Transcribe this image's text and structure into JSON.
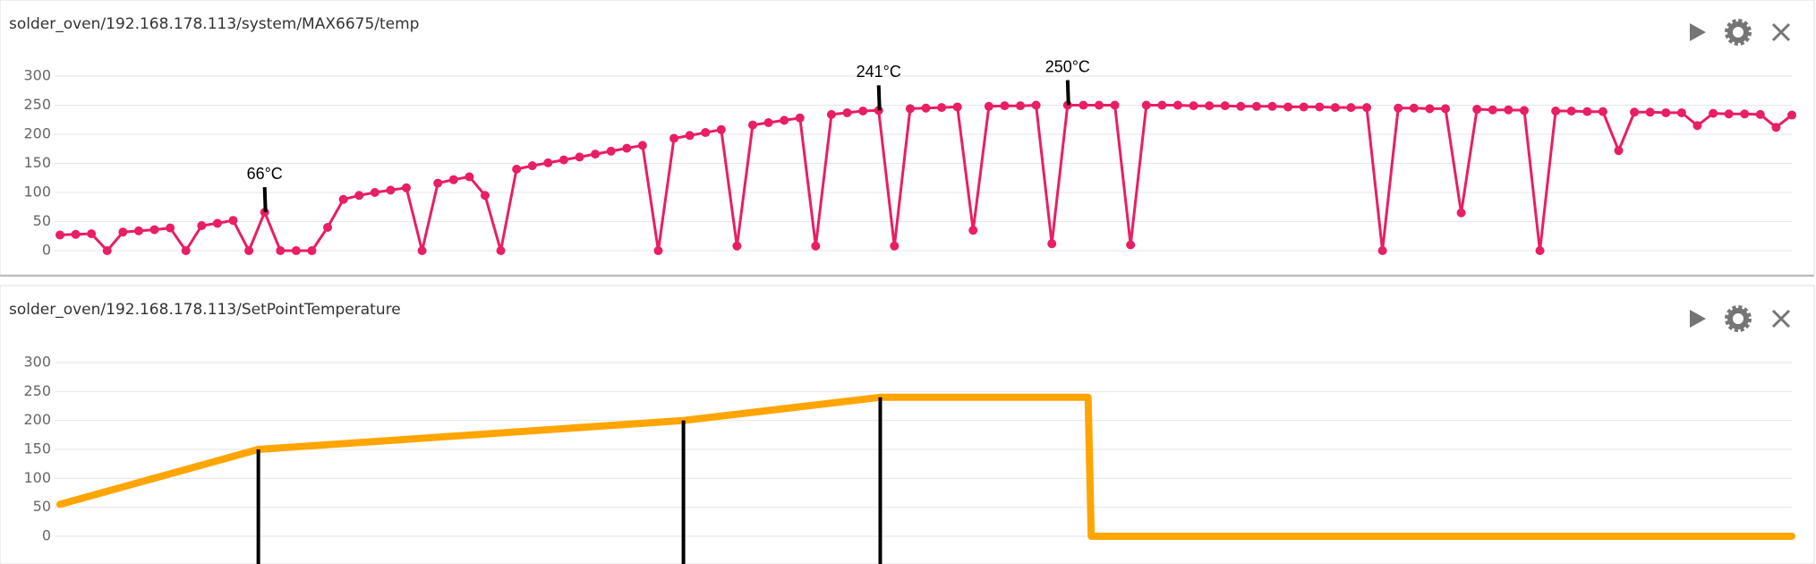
{
  "panels": [
    {
      "title": "solder_oven/192.168.178.113/system/MAX6675/temp",
      "chart": {
        "type": "line",
        "color": "#e91e63",
        "markers": true,
        "grid": true,
        "ylim": [
          0,
          300
        ],
        "yticks": [
          0,
          50,
          100,
          150,
          200,
          250,
          300
        ],
        "values": [
          27,
          28,
          29,
          0,
          32,
          34,
          36,
          39,
          0,
          43,
          47,
          52,
          0,
          66,
          0,
          0,
          0,
          40,
          88,
          95,
          100,
          104,
          108,
          0,
          116,
          122,
          127,
          95,
          0,
          140,
          146,
          151,
          156,
          161,
          166,
          171,
          176,
          181,
          0,
          193,
          198,
          203,
          208,
          8,
          216,
          220,
          224,
          228,
          8,
          234,
          237,
          240,
          241,
          8,
          244,
          245,
          246,
          247,
          35,
          248,
          249,
          249,
          250,
          12,
          250,
          250,
          250,
          250,
          10,
          250,
          250,
          250,
          249,
          249,
          249,
          248,
          248,
          248,
          247,
          247,
          247,
          246,
          246,
          246,
          0,
          245,
          245,
          244,
          244,
          65,
          243,
          242,
          242,
          241,
          0,
          240,
          240,
          239,
          239,
          172,
          238,
          238,
          237,
          237,
          215,
          236,
          235,
          235,
          234,
          212,
          233
        ],
        "annotations": [
          {
            "text": "66°C",
            "index": 13
          },
          {
            "text": "241°C",
            "index": 52
          },
          {
            "text": "250°C",
            "index": 64
          }
        ]
      }
    },
    {
      "title": "solder_oven/192.168.178.113/SetPointTemperature",
      "chart": {
        "type": "line",
        "color": "#ffa500",
        "markers": false,
        "grid": true,
        "ylim": [
          0,
          300
        ],
        "yticks": [
          0,
          50,
          100,
          150,
          200,
          250,
          300
        ],
        "xlim": [
          0,
          110
        ],
        "x": [
          0,
          12.6,
          39.6,
          52.1,
          65.3,
          65.5,
          110
        ],
        "values": [
          55,
          150,
          200,
          240,
          240,
          0,
          0
        ]
      }
    }
  ]
}
